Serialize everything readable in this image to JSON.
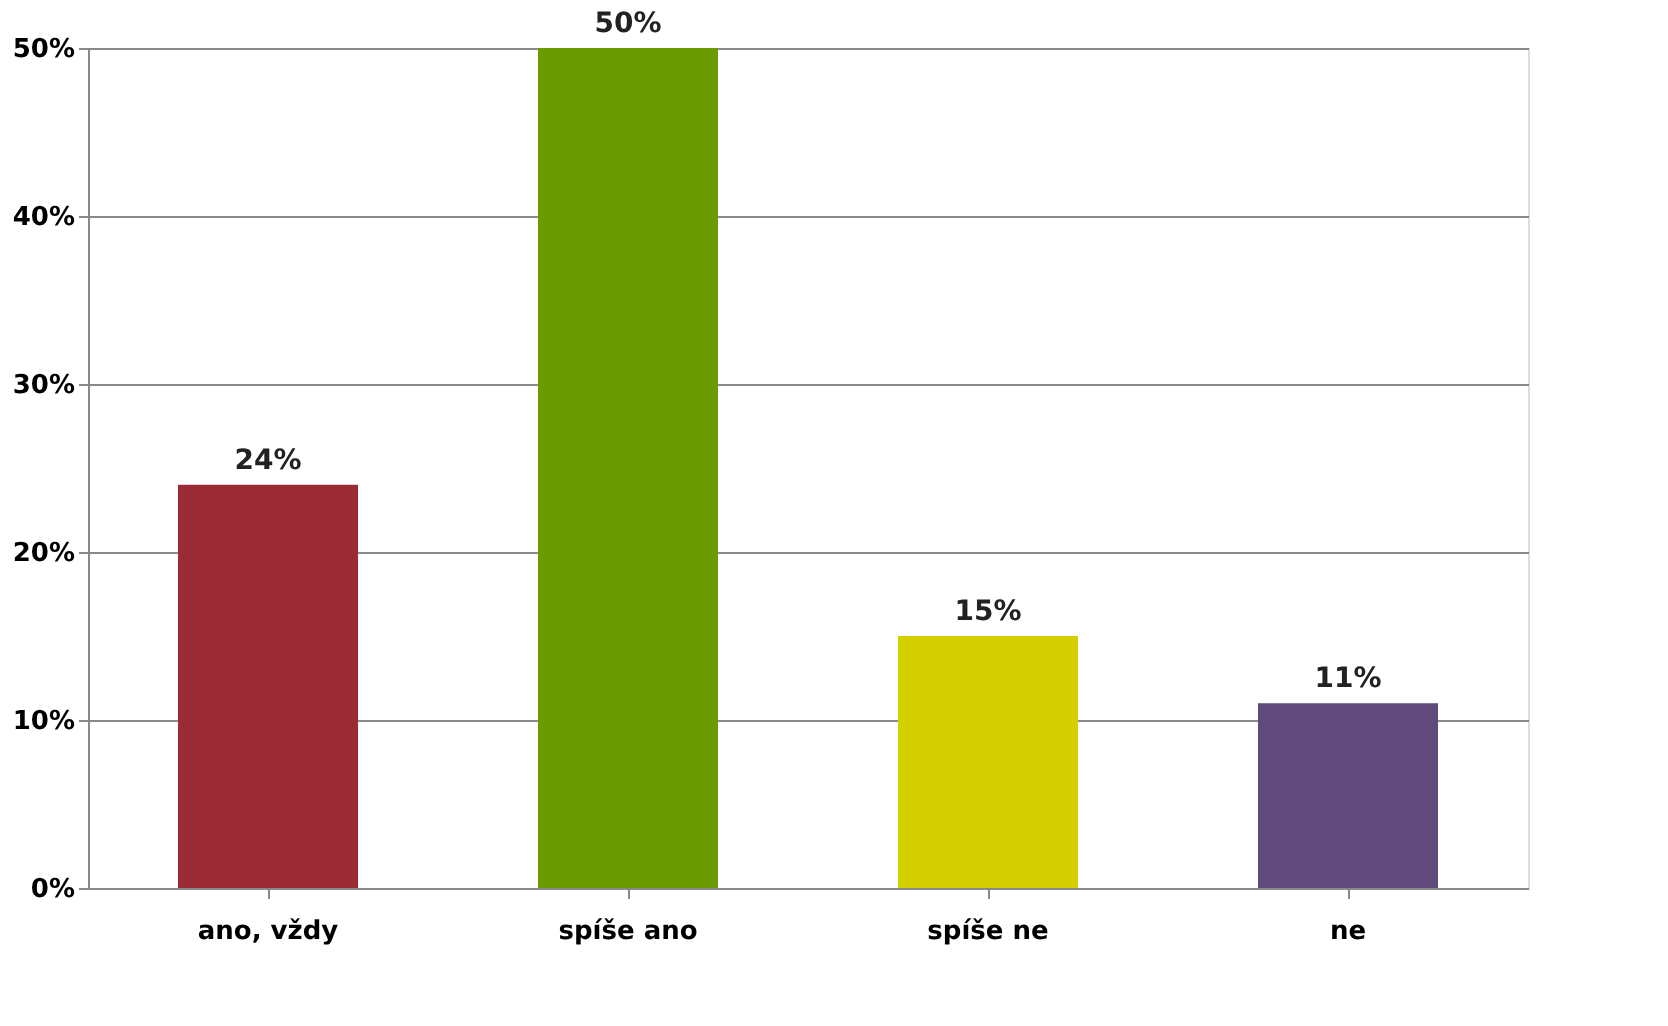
{
  "chart_data": {
    "type": "bar",
    "categories": [
      "ano, vždy",
      "spíše ano",
      "spíše ne",
      "ne"
    ],
    "values": [
      24,
      50,
      15,
      11
    ],
    "colors": [
      "#9a2b35",
      "#6a9a00",
      "#d4d000",
      "#604a7b"
    ],
    "value_labels": [
      "24%",
      "50%",
      "15%",
      "11%"
    ],
    "ylim": [
      0,
      50
    ],
    "yticks": [
      {
        "value": 0,
        "label": "0%"
      },
      {
        "value": 10,
        "label": "10%"
      },
      {
        "value": 20,
        "label": "20%"
      },
      {
        "value": 30,
        "label": "30%"
      },
      {
        "value": 40,
        "label": "40%"
      },
      {
        "value": 50,
        "label": "50%"
      }
    ],
    "grid": "y"
  }
}
